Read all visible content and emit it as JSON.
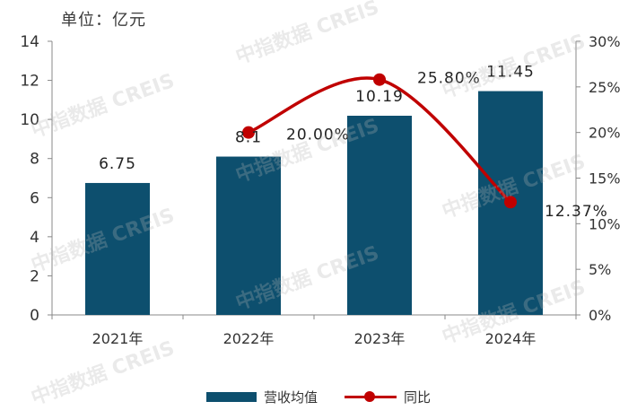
{
  "unit_label": "单位：亿元",
  "watermark": "中指数据 CREIS",
  "legend": {
    "bar_label": "营收均值",
    "line_label": "同比"
  },
  "colors": {
    "bar": "#0d4f6e",
    "line": "#c00000"
  },
  "chart_data": {
    "type": "bar",
    "categories": [
      "2021年",
      "2022年",
      "2023年",
      "2024年"
    ],
    "series": [
      {
        "name": "营收均值",
        "type": "bar",
        "axis": "left",
        "values": [
          6.75,
          8.1,
          10.19,
          11.45
        ],
        "labels": [
          "6.75",
          "8.1",
          "10.19",
          "11.45"
        ]
      },
      {
        "name": "同比",
        "type": "line",
        "axis": "right",
        "values": [
          null,
          20.0,
          25.8,
          12.37
        ],
        "labels": [
          "",
          "20.00%",
          "25.80%",
          "12.37%"
        ]
      }
    ],
    "y_left": {
      "min": 0,
      "max": 14,
      "ticks": [
        "0",
        "2",
        "4",
        "6",
        "8",
        "10",
        "12",
        "14"
      ]
    },
    "y_right": {
      "min": 0,
      "max": 30,
      "ticks": [
        "0%",
        "5%",
        "10%",
        "15%",
        "20%",
        "25%",
        "30%"
      ]
    },
    "grid": false,
    "legend_position": "bottom"
  }
}
